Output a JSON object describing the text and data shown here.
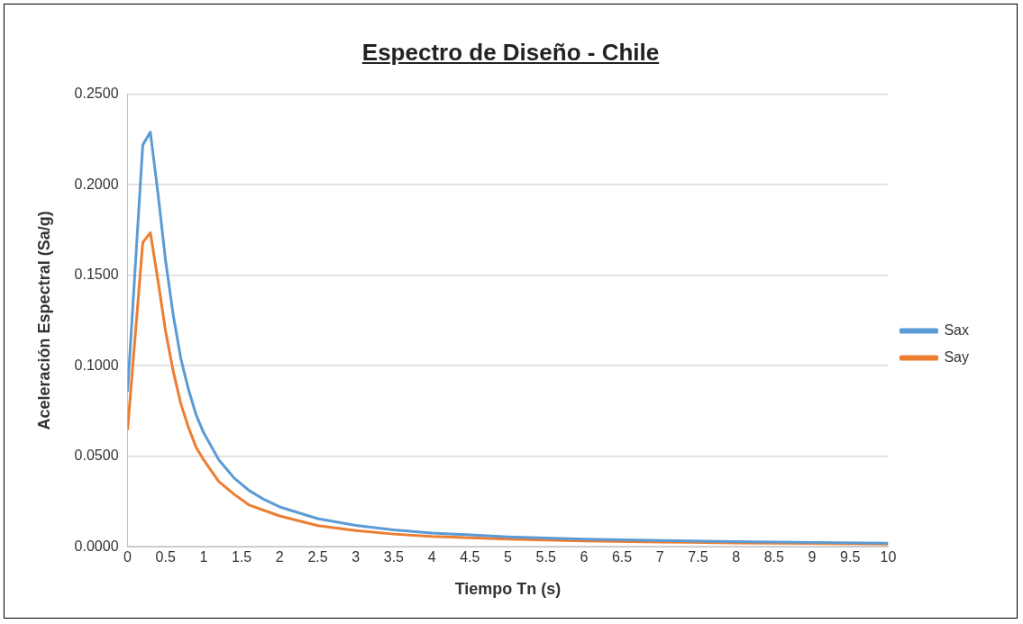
{
  "chart_data": {
    "type": "line",
    "title": "Espectro de Diseño - Chile",
    "xlabel": "Tiempo Tn (s)",
    "ylabel": "Aceleración Espectral (Sa/g)",
    "x": [
      0,
      0.2,
      0.3,
      0.4,
      0.5,
      0.6,
      0.7,
      0.8,
      0.9,
      1.0,
      1.2,
      1.4,
      1.6,
      1.8,
      2.0,
      2.5,
      3,
      3.5,
      4,
      5,
      6,
      7,
      8,
      9,
      10
    ],
    "series": [
      {
        "name": "Sax",
        "color": "#5b9bd5",
        "values": [
          0.0856,
          0.222,
          0.229,
          0.195,
          0.158,
          0.128,
          0.104,
          0.087,
          0.073,
          0.063,
          0.048,
          0.038,
          0.031,
          0.026,
          0.022,
          0.0155,
          0.0118,
          0.0093,
          0.0076,
          0.0055,
          0.0042,
          0.0034,
          0.0028,
          0.0024,
          0.002
        ]
      },
      {
        "name": "Say",
        "color": "#ed7d31",
        "values": [
          0.0645,
          0.168,
          0.1735,
          0.147,
          0.119,
          0.097,
          0.079,
          0.066,
          0.055,
          0.048,
          0.036,
          0.029,
          0.023,
          0.02,
          0.017,
          0.0117,
          0.0089,
          0.007,
          0.0057,
          0.0042,
          0.0032,
          0.0026,
          0.0021,
          0.0018,
          0.0015
        ]
      }
    ],
    "xlim": [
      0,
      10
    ],
    "xticks": [
      0,
      0.5,
      1,
      1.5,
      2,
      2.5,
      3,
      3.5,
      4,
      4.5,
      5,
      5.5,
      6,
      6.5,
      7,
      7.5,
      8,
      8.5,
      9,
      9.5,
      10
    ],
    "ylim": [
      0,
      0.25
    ],
    "yticks": [
      {
        "value": 0,
        "label": "0.0000"
      },
      {
        "value": 0.05,
        "label": "0.0500"
      },
      {
        "value": 0.1,
        "label": "0.1000"
      },
      {
        "value": 0.15,
        "label": "0.1500"
      },
      {
        "value": 0.2,
        "label": "0.2000"
      },
      {
        "value": 0.25,
        "label": "0.2500"
      }
    ],
    "grid": "y",
    "legend": "right",
    "marker": "none",
    "line_style": "solid"
  }
}
